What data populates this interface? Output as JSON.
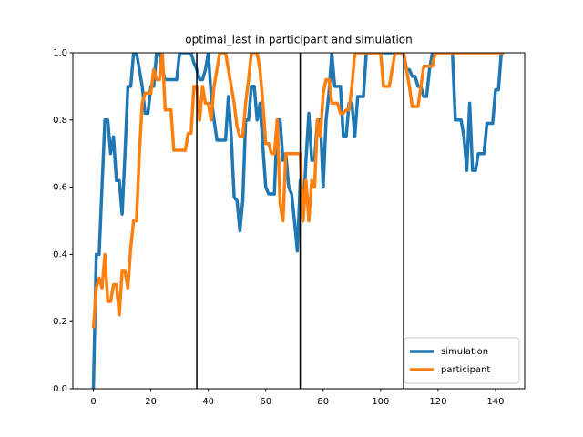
{
  "chart_data": {
    "type": "line",
    "title": "optimal_last in participant and simulation",
    "x": [
      0,
      1,
      2,
      3,
      4,
      5,
      6,
      7,
      8,
      9,
      10,
      11,
      12,
      13,
      14,
      15,
      16,
      17,
      18,
      19,
      20,
      21,
      22,
      23,
      24,
      25,
      26,
      27,
      28,
      29,
      30,
      31,
      32,
      33,
      34,
      35,
      36,
      37,
      38,
      39,
      40,
      41,
      42,
      43,
      44,
      45,
      46,
      47,
      48,
      49,
      50,
      51,
      52,
      53,
      54,
      55,
      56,
      57,
      58,
      59,
      60,
      61,
      62,
      63,
      64,
      65,
      66,
      67,
      68,
      69,
      70,
      71,
      72,
      73,
      74,
      75,
      76,
      77,
      78,
      79,
      80,
      81,
      82,
      83,
      84,
      85,
      86,
      87,
      88,
      89,
      90,
      91,
      92,
      93,
      94,
      95,
      96,
      97,
      98,
      99,
      100,
      101,
      102,
      103,
      104,
      105,
      106,
      107,
      108,
      109,
      110,
      111,
      112,
      113,
      114,
      115,
      116,
      117,
      118,
      119,
      120,
      121,
      122,
      123,
      124,
      125,
      126,
      127,
      128,
      129,
      130,
      131,
      132,
      133,
      134,
      135,
      136,
      137,
      138,
      139,
      140,
      141,
      142,
      143
    ],
    "series": [
      {
        "name": "simulation",
        "color": "#1f77b4",
        "values": [
          0.0,
          0.4,
          0.4,
          0.6,
          0.8,
          0.8,
          0.7,
          0.75,
          0.62,
          0.62,
          0.52,
          0.7,
          0.9,
          0.9,
          1.0,
          1.0,
          0.95,
          0.9,
          0.82,
          0.82,
          0.9,
          0.9,
          1.0,
          1.0,
          0.95,
          0.92,
          0.92,
          0.92,
          0.92,
          0.92,
          1.0,
          1.0,
          1.0,
          1.0,
          1.0,
          0.97,
          0.95,
          0.92,
          0.92,
          0.95,
          1.0,
          0.87,
          0.8,
          0.74,
          0.74,
          0.74,
          0.74,
          0.87,
          0.75,
          0.57,
          0.56,
          0.47,
          0.56,
          0.8,
          0.8,
          0.9,
          0.9,
          0.8,
          0.85,
          0.72,
          0.6,
          0.58,
          0.58,
          0.58,
          0.8,
          0.8,
          0.68,
          0.7,
          0.6,
          0.58,
          0.5,
          0.41,
          0.62,
          0.5,
          0.68,
          0.82,
          0.68,
          0.68,
          0.8,
          0.8,
          0.6,
          0.8,
          0.88,
          1.0,
          0.9,
          0.9,
          0.9,
          0.75,
          0.75,
          0.85,
          0.85,
          0.75,
          0.87,
          0.87,
          0.87,
          1.0,
          1.0,
          1.0,
          1.0,
          1.0,
          1.0,
          1.0,
          1.0,
          1.0,
          1.0,
          1.0,
          1.0,
          1.0,
          1.0,
          0.95,
          0.95,
          0.93,
          0.93,
          0.9,
          0.9,
          0.87,
          0.87,
          0.95,
          1.0,
          1.0,
          1.0,
          1.0,
          1.0,
          1.0,
          1.0,
          1.0,
          0.8,
          0.8,
          0.8,
          0.75,
          0.65,
          0.85,
          0.65,
          0.65,
          0.7,
          0.7,
          0.7,
          0.79,
          0.79,
          0.79,
          0.89,
          0.89,
          1.0,
          1.0
        ]
      },
      {
        "name": "participant",
        "color": "#ff7f0e",
        "values": [
          0.18,
          0.3,
          0.33,
          0.3,
          0.4,
          0.26,
          0.26,
          0.31,
          0.31,
          0.22,
          0.35,
          0.35,
          0.3,
          0.42,
          0.5,
          0.5,
          0.7,
          0.85,
          0.88,
          0.88,
          0.88,
          0.95,
          0.92,
          0.92,
          1.0,
          0.83,
          0.83,
          0.83,
          0.71,
          0.71,
          0.71,
          0.71,
          0.71,
          0.76,
          0.76,
          0.9,
          0.9,
          0.8,
          0.9,
          0.85,
          0.85,
          0.8,
          0.9,
          0.95,
          1.0,
          1.0,
          1.0,
          0.95,
          0.9,
          0.85,
          0.78,
          0.75,
          0.75,
          0.85,
          0.92,
          1.0,
          1.0,
          1.0,
          0.95,
          0.85,
          0.73,
          0.73,
          0.7,
          0.7,
          0.8,
          0.55,
          0.5,
          0.7,
          0.7,
          0.7,
          0.7,
          0.7,
          0.7,
          0.5,
          0.62,
          0.5,
          0.62,
          0.6,
          0.8,
          0.75,
          0.88,
          0.92,
          0.92,
          0.85,
          0.85,
          0.85,
          0.82,
          0.82,
          0.83,
          0.83,
          0.9,
          1.0,
          1.0,
          1.0,
          1.0,
          1.0,
          1.0,
          1.0,
          1.0,
          1.0,
          1.0,
          0.9,
          0.9,
          0.9,
          0.95,
          1.0,
          1.0,
          1.0,
          1.0,
          0.95,
          0.9,
          0.84,
          0.84,
          0.84,
          0.9,
          0.96,
          0.96,
          0.96,
          0.96,
          1.0,
          1.0,
          1.0,
          1.0,
          1.0,
          1.0,
          1.0,
          1.0,
          1.0,
          1.0,
          1.0,
          1.0,
          1.0,
          1.0,
          1.0,
          1.0,
          1.0,
          1.0,
          1.0,
          1.0,
          1.0,
          1.0,
          1.0,
          1.0,
          1.0
        ]
      }
    ],
    "vlines": [
      36,
      72,
      108
    ],
    "vline_color": "#000000",
    "xlim": [
      -7.15,
      150.15
    ],
    "ylim": [
      0,
      1
    ],
    "xticks": [
      0,
      20,
      40,
      60,
      80,
      100,
      120,
      140
    ],
    "yticks": [
      {
        "value": 0,
        "label": "0.0"
      },
      {
        "value": 0.2,
        "label": "0.2"
      },
      {
        "value": 0.4,
        "label": "0.4"
      },
      {
        "value": 0.6,
        "label": "0.6"
      },
      {
        "value": 0.8,
        "label": "0.8"
      },
      {
        "value": 1,
        "label": "1.0"
      }
    ],
    "legend": "lower right",
    "grid": false
  }
}
